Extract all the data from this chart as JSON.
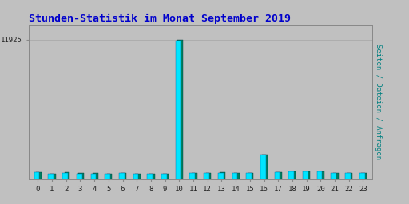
{
  "title": "Stunden-Statistik im Monat September 2019",
  "title_color": "#0000cc",
  "title_fontsize": 9.5,
  "background_color": "#c0c0c0",
  "plot_bg_color": "#c0c0c0",
  "categories": [
    0,
    1,
    2,
    3,
    4,
    5,
    6,
    7,
    8,
    9,
    10,
    11,
    12,
    13,
    14,
    15,
    16,
    17,
    18,
    19,
    20,
    21,
    22,
    23
  ],
  "values_cyan": [
    600,
    480,
    580,
    520,
    520,
    500,
    530,
    510,
    500,
    470,
    11800,
    530,
    560,
    590,
    560,
    530,
    2100,
    640,
    680,
    710,
    680,
    575,
    575,
    535
  ],
  "values_teal": [
    620,
    500,
    600,
    540,
    540,
    515,
    545,
    525,
    515,
    485,
    11925,
    545,
    575,
    605,
    575,
    545,
    2150,
    655,
    715,
    730,
    700,
    590,
    590,
    550
  ],
  "bar_color_cyan": "#00e5ff",
  "bar_color_teal": "#008060",
  "bar_color_dark": "#000080",
  "ylim_max": 13200,
  "ytick_value": 11925,
  "ytick_label": "11925",
  "right_label": "Seiten / Dateien / Anfragen",
  "right_label_color": "#008080",
  "right_label_blue": "#0000cc",
  "grid_color": "#aaaaaa"
}
